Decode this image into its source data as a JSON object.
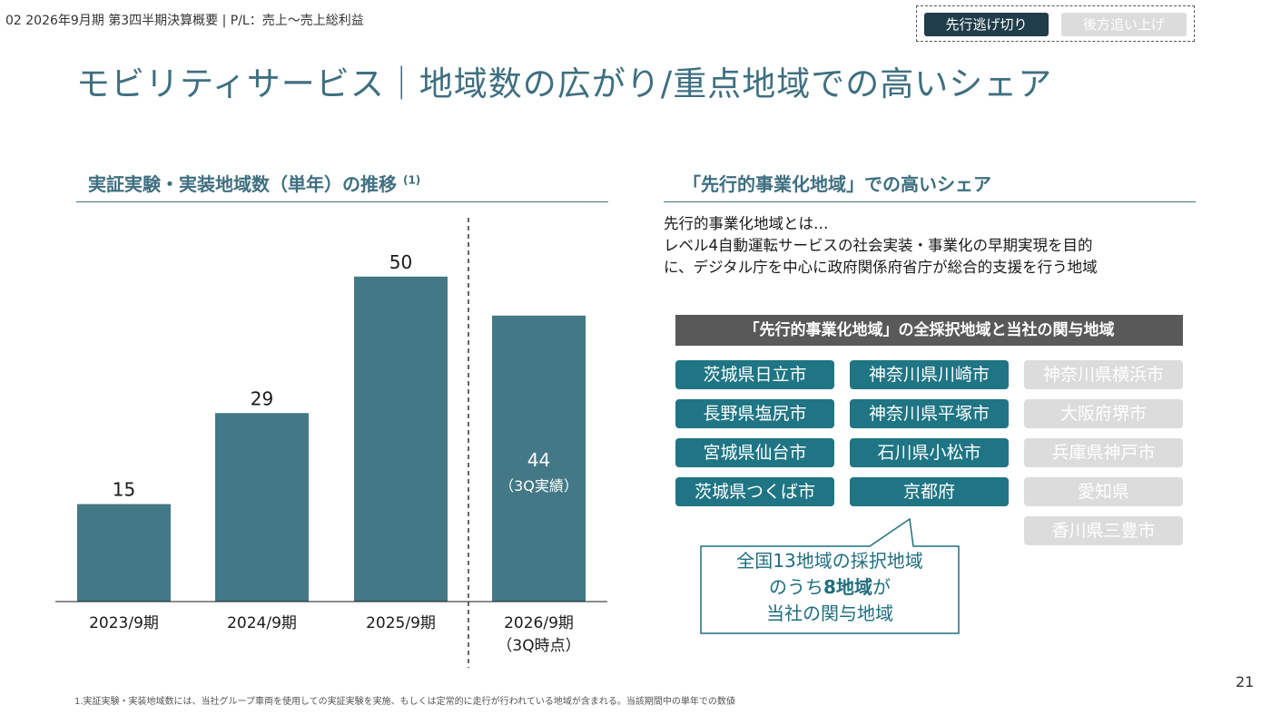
{
  "header": {
    "breadcrumb": "02 2026年9月期 第3四半期決算概要 | P/L：売上〜売上総利益",
    "toggle_active": "先行逃げ切り",
    "toggle_inactive": "後方追い上げ"
  },
  "title": "モビリティサービス｜地域数の広がり/重点地域での高いシェア",
  "left_section": {
    "heading": "実証実験・実装地域数（単年）の推移",
    "heading_note": "(1)"
  },
  "chart_data": {
    "type": "bar",
    "title": "実証実験・実装地域数（単年）の推移",
    "categories": [
      "2023/9期",
      "2024/9期",
      "2025/9期",
      "2026/9期"
    ],
    "category_sublabels": [
      "",
      "",
      "",
      "（3Q時点）"
    ],
    "values": [
      15,
      29,
      50,
      44
    ],
    "value_labels": [
      "15",
      "29",
      "50",
      "44"
    ],
    "value_sublabels": [
      "",
      "",
      "",
      "（3Q実績）"
    ],
    "label_inside": [
      false,
      false,
      false,
      true
    ],
    "ylim": [
      0,
      55
    ],
    "color": "#437886",
    "divider_before_index": 3
  },
  "right_section": {
    "heading": "「先行的事業化地域」での高いシェア",
    "description_lines": [
      "先行的事業化地域とは…",
      "レベル4自動運転サービスの社会実装・事業化の早期実現を目的",
      "に、デジタル庁を中心に政府関係府省庁が総合的支援を行う地域"
    ],
    "table_header": "「先行的事業化地域」の全採択地域と当社の関与地域",
    "columns": [
      [
        "茨城県日立市",
        "長野県塩尻市",
        "宮城県仙台市",
        "茨城県つくば市"
      ],
      [
        "神奈川県川崎市",
        "神奈川県平塚市",
        "石川県小松市",
        "京都府"
      ],
      [
        "神奈川県横浜市",
        "大阪府堺市",
        "兵庫県神戸市",
        "愛知県",
        "香川県三豊市"
      ]
    ],
    "column_involved": [
      true,
      true,
      false
    ],
    "callout": {
      "line1": "全国13地域の採択地域",
      "line2_pre": "のうち",
      "line2_bold": "8地域",
      "line2_post": "が",
      "line3": "当社の関与地域"
    },
    "colors": {
      "involved": "#1f7584",
      "not_involved": "#dcdcdc"
    }
  },
  "footnote": {
    "marker": "1.",
    "text": "実証実験・実装地域数には、当社グループ車両を使用しての実証実験を実施、もしくは定常的に走行が行われている地域が含まれる。当該期間中の単年での数値"
  },
  "page_number": "21"
}
